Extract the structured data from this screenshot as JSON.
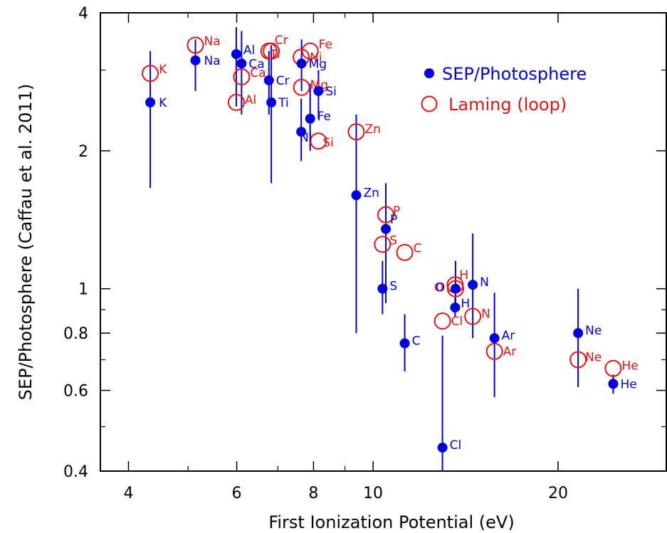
{
  "chart_data": {
    "type": "scatter",
    "xlabel": "First Ionization Potential (eV)",
    "ylabel": "SEP/Photosphere (Caffau et al. 2011)",
    "x_scale": "log",
    "y_scale": "log",
    "xlim": [
      3.6,
      30
    ],
    "ylim": [
      0.4,
      4.0
    ],
    "x_ticks": [
      4,
      6,
      8,
      10,
      20
    ],
    "x_tick_labels": [
      "4",
      "6",
      "8",
      "10",
      "20"
    ],
    "y_ticks": [
      0.4,
      0.6,
      0.8,
      1,
      2,
      4
    ],
    "y_tick_labels": [
      "0.4",
      "0.6",
      "0.8",
      "1",
      "2",
      "4"
    ],
    "legend_position": "top-right",
    "grid": false,
    "colors": {
      "sep": "#0000dd",
      "laming": "#ee1111"
    },
    "series": [
      {
        "name": "SEP/Photosphere",
        "marker": "filled-circle",
        "color": "#0000dd",
        "points": [
          {
            "label": "K",
            "x": 4.34,
            "y": 2.55,
            "err_lo": 1.66,
            "err_hi": 3.3
          },
          {
            "label": "Na",
            "x": 5.14,
            "y": 3.15,
            "err_lo": 2.7,
            "err_hi": 3.5
          },
          {
            "label": "Al",
            "x": 5.99,
            "y": 3.25,
            "err_lo": 2.5,
            "err_hi": 3.72
          },
          {
            "label": "Ca",
            "x": 6.11,
            "y": 3.1,
            "err_lo": 2.4,
            "err_hi": 3.65
          },
          {
            "label": "Cr",
            "x": 6.77,
            "y": 2.85,
            "err_lo": 2.4,
            "err_hi": 3.3
          },
          {
            "label": "Ti",
            "x": 6.83,
            "y": 2.55,
            "err_lo": 1.7,
            "err_hi": 3.4
          },
          {
            "label": "Mg",
            "x": 7.65,
            "y": 3.1,
            "err_lo": 2.7,
            "err_hi": 3.5
          },
          {
            "label": "Fe",
            "x": 7.9,
            "y": 2.35,
            "err_lo": 2.0,
            "err_hi": 2.8
          },
          {
            "label": "Ni",
            "x": 7.64,
            "y": 2.2,
            "err_lo": 1.9,
            "err_hi": 2.6
          },
          {
            "label": "Si",
            "x": 8.15,
            "y": 2.7,
            "err_lo": 2.35,
            "err_hi": 3.0
          },
          {
            "label": "Zn",
            "x": 9.39,
            "y": 1.6,
            "err_lo": 0.8,
            "err_hi": 2.4
          },
          {
            "label": "P",
            "x": 10.49,
            "y": 1.35,
            "err_lo": 0.93,
            "err_hi": 1.7
          },
          {
            "label": "S",
            "x": 10.36,
            "y": 1.0,
            "err_lo": 0.88,
            "err_hi": 1.15
          },
          {
            "label": "C",
            "x": 11.26,
            "y": 0.76,
            "err_lo": 0.66,
            "err_hi": 0.88
          },
          {
            "label": "Cl",
            "x": 12.97,
            "y": 0.45,
            "err_lo": 0.4,
            "err_hi": 0.79
          },
          {
            "label": "O",
            "x": 13.62,
            "y": 1.0,
            "err_lo": 0.9,
            "err_hi": 1.15
          },
          {
            "label": "H",
            "x": 13.6,
            "y": 0.91,
            "err_lo": 0.87,
            "err_hi": 0.96
          },
          {
            "label": "N",
            "x": 14.53,
            "y": 1.02,
            "err_lo": 0.78,
            "err_hi": 1.32
          },
          {
            "label": "Ar",
            "x": 15.76,
            "y": 0.78,
            "err_lo": 0.58,
            "err_hi": 0.98
          },
          {
            "label": "Ne",
            "x": 21.56,
            "y": 0.8,
            "err_lo": 0.61,
            "err_hi": 1.0
          },
          {
            "label": "He",
            "x": 24.59,
            "y": 0.62,
            "err_lo": 0.59,
            "err_hi": 0.65
          }
        ]
      },
      {
        "name": "Laming (loop)",
        "marker": "open-circle",
        "color": "#ee1111",
        "points": [
          {
            "label": "K",
            "x": 4.34,
            "y": 2.95
          },
          {
            "label": "Na",
            "x": 5.14,
            "y": 3.4
          },
          {
            "label": "Al",
            "x": 5.99,
            "y": 2.55
          },
          {
            "label": "Ca",
            "x": 6.11,
            "y": 2.9
          },
          {
            "label": "Cr",
            "x": 6.77,
            "y": 3.3
          },
          {
            "label": "Ti",
            "x": 6.83,
            "y": 3.3
          },
          {
            "label": "Fe",
            "x": 7.9,
            "y": 3.3
          },
          {
            "label": "Ni",
            "x": 7.64,
            "y": 3.2
          },
          {
            "label": "Mg",
            "x": 7.65,
            "y": 2.75
          },
          {
            "label": "Si",
            "x": 8.15,
            "y": 2.1
          },
          {
            "label": "Zn",
            "x": 9.39,
            "y": 2.2
          },
          {
            "label": "P",
            "x": 10.49,
            "y": 1.45
          },
          {
            "label": "S",
            "x": 10.36,
            "y": 1.25
          },
          {
            "label": "C",
            "x": 11.26,
            "y": 1.2
          },
          {
            "label": "O",
            "x": 13.62,
            "y": 1.0
          },
          {
            "label": "H",
            "x": 13.6,
            "y": 1.02
          },
          {
            "label": "Cl",
            "x": 12.97,
            "y": 0.85
          },
          {
            "label": "N",
            "x": 14.53,
            "y": 0.87
          },
          {
            "label": "Ar",
            "x": 15.76,
            "y": 0.73
          },
          {
            "label": "Ne",
            "x": 21.56,
            "y": 0.7
          },
          {
            "label": "He",
            "x": 24.59,
            "y": 0.67
          }
        ]
      }
    ],
    "legend": [
      {
        "label": "SEP/Photosphere",
        "marker": "filled-circle",
        "color": "#0000dd"
      },
      {
        "label": "Laming (loop)",
        "marker": "open-circle",
        "color": "#ee1111"
      }
    ]
  }
}
